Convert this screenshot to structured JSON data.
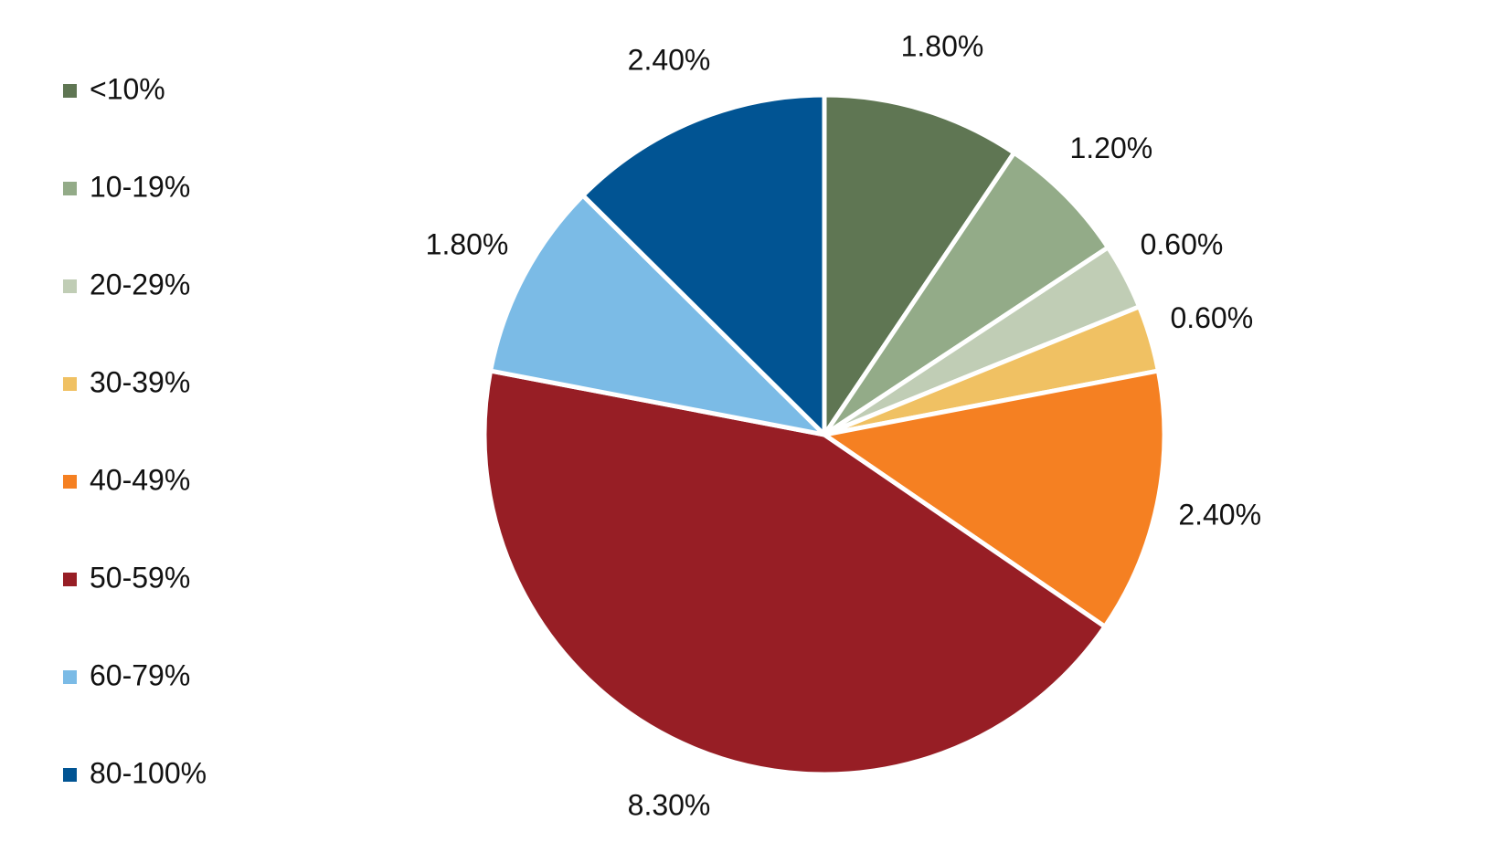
{
  "chart_data": {
    "type": "pie",
    "categories": [
      "<10%",
      "10-19%",
      "20-29%",
      "30-39%",
      "40-49%",
      "50-59%",
      "60-79%",
      "80-100%"
    ],
    "values": [
      1.8,
      1.2,
      0.6,
      0.6,
      2.4,
      8.3,
      1.8,
      2.4
    ],
    "value_labels": [
      "1.80%",
      "1.20%",
      "0.60%",
      "0.60%",
      "2.40%",
      "8.30%",
      "1.80%",
      "2.40%"
    ],
    "colors": [
      "#5f7653",
      "#93ab88",
      "#c0cdb5",
      "#f0c163",
      "#f58022",
      "#971e25",
      "#7bbbe6",
      "#015493"
    ],
    "legend": "left"
  }
}
